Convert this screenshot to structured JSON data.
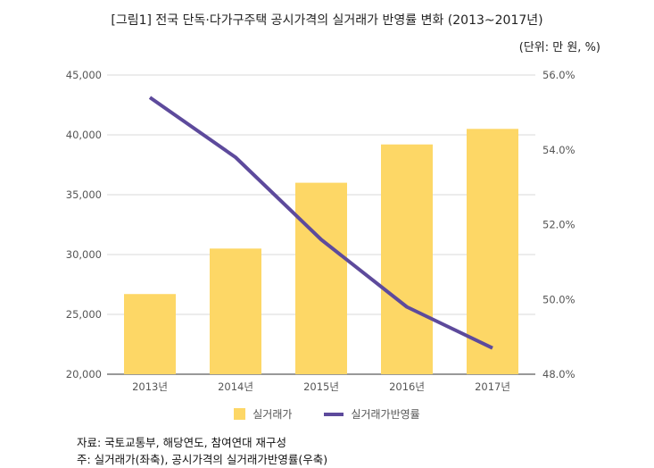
{
  "header": {
    "title": "[그림1] 전국 단독·다가구주택 공시가격의 실거래가 반영률 변화 (2013~2017년)",
    "unit": "(단위: 만 원, %)"
  },
  "legend": {
    "bar_label": "실거래가",
    "line_label": "실거래가반영률"
  },
  "footer": {
    "source": "자료: 국토교통부, 해당연도, 참여연대 재구성",
    "note": "주: 실거래가(좌축), 공시가격의 실거래가반영률(우축)"
  },
  "colors": {
    "bar": "#FDD766",
    "line": "#5D4A9C",
    "grid": "#D9D9D9"
  },
  "chart_data": {
    "type": "bar",
    "categories": [
      "2013년",
      "2014년",
      "2015년",
      "2016년",
      "2017년"
    ],
    "series": [
      {
        "name": "실거래가",
        "type": "bar",
        "axis": "left",
        "values": [
          26700,
          30500,
          36000,
          39200,
          40500
        ]
      },
      {
        "name": "실거래가반영률",
        "type": "line",
        "axis": "right",
        "values": [
          55.4,
          53.8,
          51.6,
          49.8,
          48.7
        ]
      }
    ],
    "y_left": {
      "min": 20000,
      "max": 45000,
      "ticks": [
        "20,000",
        "25,000",
        "30,000",
        "35,000",
        "40,000",
        "45,000"
      ]
    },
    "y_right": {
      "min": 48,
      "max": 56,
      "ticks": [
        "48.0%",
        "50.0%",
        "52.0%",
        "54.0%",
        "56.0%"
      ]
    },
    "grid": true,
    "legend_position": "bottom"
  }
}
